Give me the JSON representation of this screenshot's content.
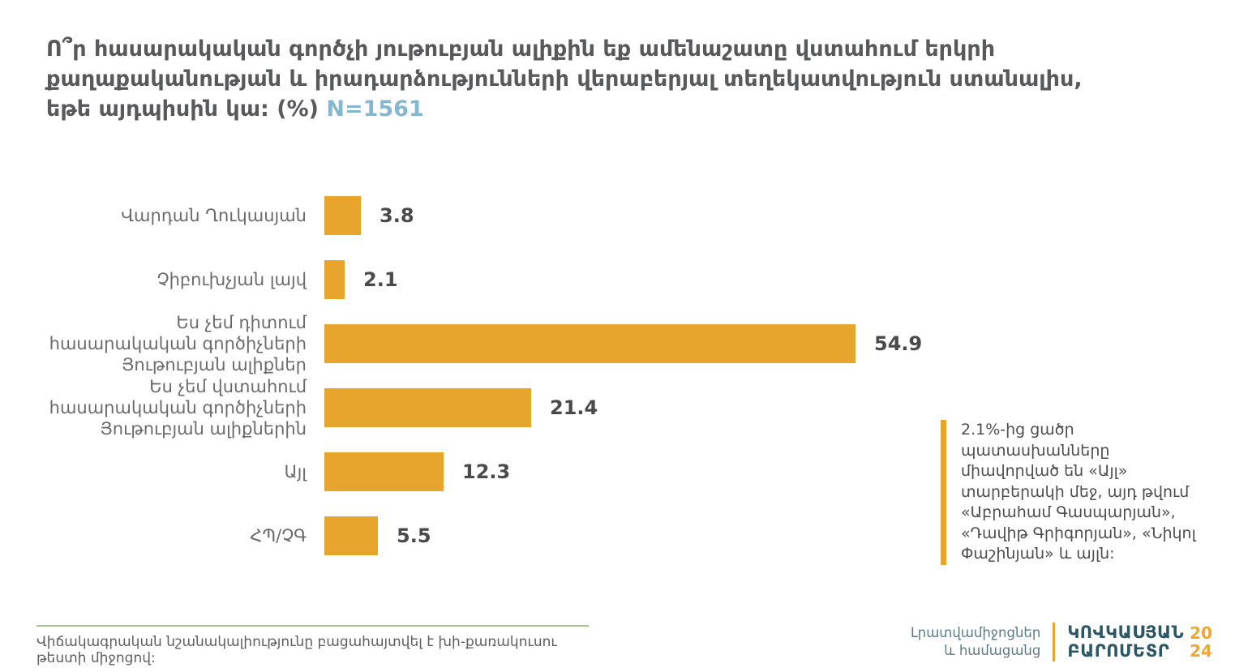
{
  "title": {
    "text": "Ո՞ր հասարակական գործչի յութուբյան ալիքին եք ամենաշատը վստահում երկրի քաղաքականության և իրադարձությունների վերաբերյալ տեղեկատվություն ստանալիս, եթե այդպիսին կա: (%)",
    "sample": "N=1561"
  },
  "chart_data": {
    "type": "bar",
    "orientation": "horizontal",
    "unit": "%",
    "categories": [
      "Վարդան Ղուկասյան",
      "Չիբուխչյան լայվ",
      "Ես չեմ դիտում հասարակական գործիչների Յութուբյան ալիքներ",
      "Ես չեմ վստահում հասարակական գործիչների Յութուբյան ալիքներին",
      "Այլ",
      "ՀՊ/ՉԳ"
    ],
    "values": [
      3.8,
      2.1,
      54.9,
      21.4,
      12.3,
      5.5
    ],
    "xlim": [
      0,
      60
    ],
    "grid": false,
    "legend": false,
    "value_labels": true,
    "bar_color": "#E7A52E"
  },
  "annotation": {
    "text": "2.1%-ից ցածր պատասխանները միավորված են «Այլ» տարբերակի մեջ, այդ թվում «Աբրահամ Գասպարյան», «Դավիթ Գրիգորյան», «Նիկոլ Փաշինյան» և այլն:"
  },
  "footer": {
    "note": "Վիճակագրական նշանակալիությունը բացահայտվել է խի-քառակուսու թեստի միջոցով:",
    "section_line1": "Լրատվամիջոցներ",
    "section_line2": "և համացանց",
    "logo": {
      "line1": "ԿՈՎԿԱՍՅԱՆ",
      "line2": "ԲԱՐՈՄԵՏՐ",
      "year_top": "20",
      "year_bottom": "24"
    }
  },
  "colors": {
    "accent": "#E7A52E",
    "title_text": "#58595B",
    "sample_blue": "#85B7D0",
    "logo_teal": "#2E5765",
    "footer_line_green": "#A6C48A"
  }
}
